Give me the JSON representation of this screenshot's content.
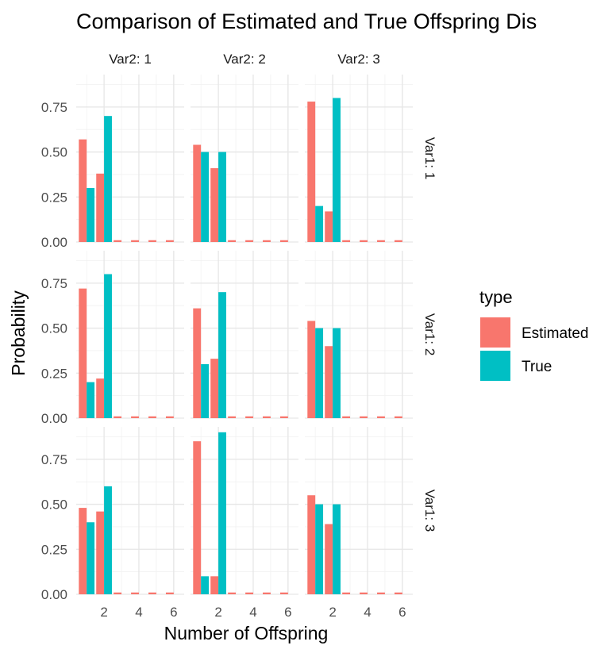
{
  "chart_data": {
    "type": "bar",
    "title": "Comparison of Estimated and True Offspring Dis",
    "xlabel": "Number of Offspring",
    "ylabel": "Probability",
    "xlim": [
      0.4,
      6.6
    ],
    "ylim": [
      0,
      0.93
    ],
    "x_ticks": [
      "2",
      "4",
      "6"
    ],
    "y_ticks": [
      "0.00",
      "0.25",
      "0.50",
      "0.75"
    ],
    "grid": true,
    "facet_cols": [
      "Var2: 1",
      "Var2: 2",
      "Var2: 3"
    ],
    "facet_rows": [
      "Var1: 1",
      "Var1: 2",
      "Var1: 3"
    ],
    "x": [
      1,
      2,
      3,
      4,
      5,
      6
    ],
    "legend": {
      "title": "type",
      "position": "right",
      "entries": [
        {
          "label": "Estimated",
          "color": "#F8766D"
        },
        {
          "label": "True",
          "color": "#00BFC4"
        }
      ]
    },
    "panels": [
      {
        "row": 0,
        "col": 0,
        "estimated": [
          0.57,
          0.38,
          0.01,
          0.01,
          0.01,
          0.01
        ],
        "true": [
          0.3,
          0.7,
          0,
          0,
          0,
          0
        ]
      },
      {
        "row": 0,
        "col": 1,
        "estimated": [
          0.54,
          0.41,
          0.01,
          0.01,
          0.01,
          0.01
        ],
        "true": [
          0.5,
          0.5,
          0,
          0,
          0,
          0
        ]
      },
      {
        "row": 0,
        "col": 2,
        "estimated": [
          0.78,
          0.17,
          0.01,
          0.01,
          0.01,
          0.01
        ],
        "true": [
          0.2,
          0.8,
          0,
          0,
          0,
          0
        ]
      },
      {
        "row": 1,
        "col": 0,
        "estimated": [
          0.72,
          0.22,
          0.01,
          0.01,
          0.01,
          0.01
        ],
        "true": [
          0.2,
          0.8,
          0,
          0,
          0,
          0
        ]
      },
      {
        "row": 1,
        "col": 1,
        "estimated": [
          0.61,
          0.33,
          0.01,
          0.01,
          0.01,
          0.01
        ],
        "true": [
          0.3,
          0.7,
          0,
          0,
          0,
          0
        ]
      },
      {
        "row": 1,
        "col": 2,
        "estimated": [
          0.54,
          0.4,
          0.01,
          0.01,
          0.01,
          0.01
        ],
        "true": [
          0.5,
          0.5,
          0,
          0,
          0,
          0
        ]
      },
      {
        "row": 2,
        "col": 0,
        "estimated": [
          0.48,
          0.46,
          0.01,
          0.01,
          0.01,
          0.01
        ],
        "true": [
          0.4,
          0.6,
          0,
          0,
          0,
          0
        ]
      },
      {
        "row": 2,
        "col": 1,
        "estimated": [
          0.85,
          0.1,
          0.01,
          0.01,
          0.01,
          0.01
        ],
        "true": [
          0.1,
          0.9,
          0,
          0,
          0,
          0
        ]
      },
      {
        "row": 2,
        "col": 2,
        "estimated": [
          0.55,
          0.39,
          0.01,
          0.01,
          0.01,
          0.01
        ],
        "true": [
          0.5,
          0.5,
          0,
          0,
          0,
          0
        ]
      }
    ]
  }
}
